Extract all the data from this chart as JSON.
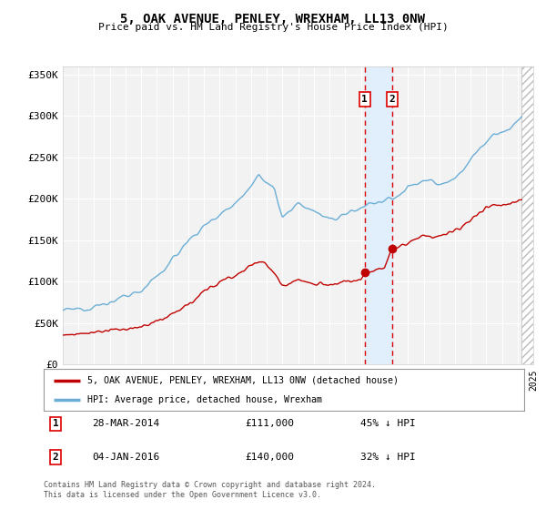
{
  "title": "5, OAK AVENUE, PENLEY, WREXHAM, LL13 0NW",
  "subtitle": "Price paid vs. HM Land Registry's House Price Index (HPI)",
  "ylim": [
    0,
    360000
  ],
  "yticks": [
    0,
    50000,
    100000,
    150000,
    200000,
    250000,
    300000,
    350000
  ],
  "ytick_labels": [
    "£0",
    "£50K",
    "£100K",
    "£150K",
    "£200K",
    "£250K",
    "£300K",
    "£350K"
  ],
  "sale1_date": "28-MAR-2014",
  "sale1_price": 111000,
  "sale1_label": "45% ↓ HPI",
  "sale2_date": "04-JAN-2016",
  "sale2_price": 140000,
  "sale2_label": "32% ↓ HPI",
  "sale1_x": 2014.24,
  "sale2_x": 2016.01,
  "sale1_y": 111000,
  "sale2_y": 140000,
  "legend_label_red": "5, OAK AVENUE, PENLEY, WREXHAM, LL13 0NW (detached house)",
  "legend_label_blue": "HPI: Average price, detached house, Wrexham",
  "footer": "Contains HM Land Registry data © Crown copyright and database right 2024.\nThis data is licensed under the Open Government Licence v3.0.",
  "hpi_color": "#6aaed6",
  "price_color": "#c00000",
  "background_color": "#ffffff",
  "plot_bg_color": "#f2f2f2",
  "grid_color": "#ffffff",
  "hatch_color": "#cccccc",
  "span_color": "#ddeeff",
  "xlim_start": 1995,
  "xlim_end": 2025,
  "hatch_start": 2024.25
}
